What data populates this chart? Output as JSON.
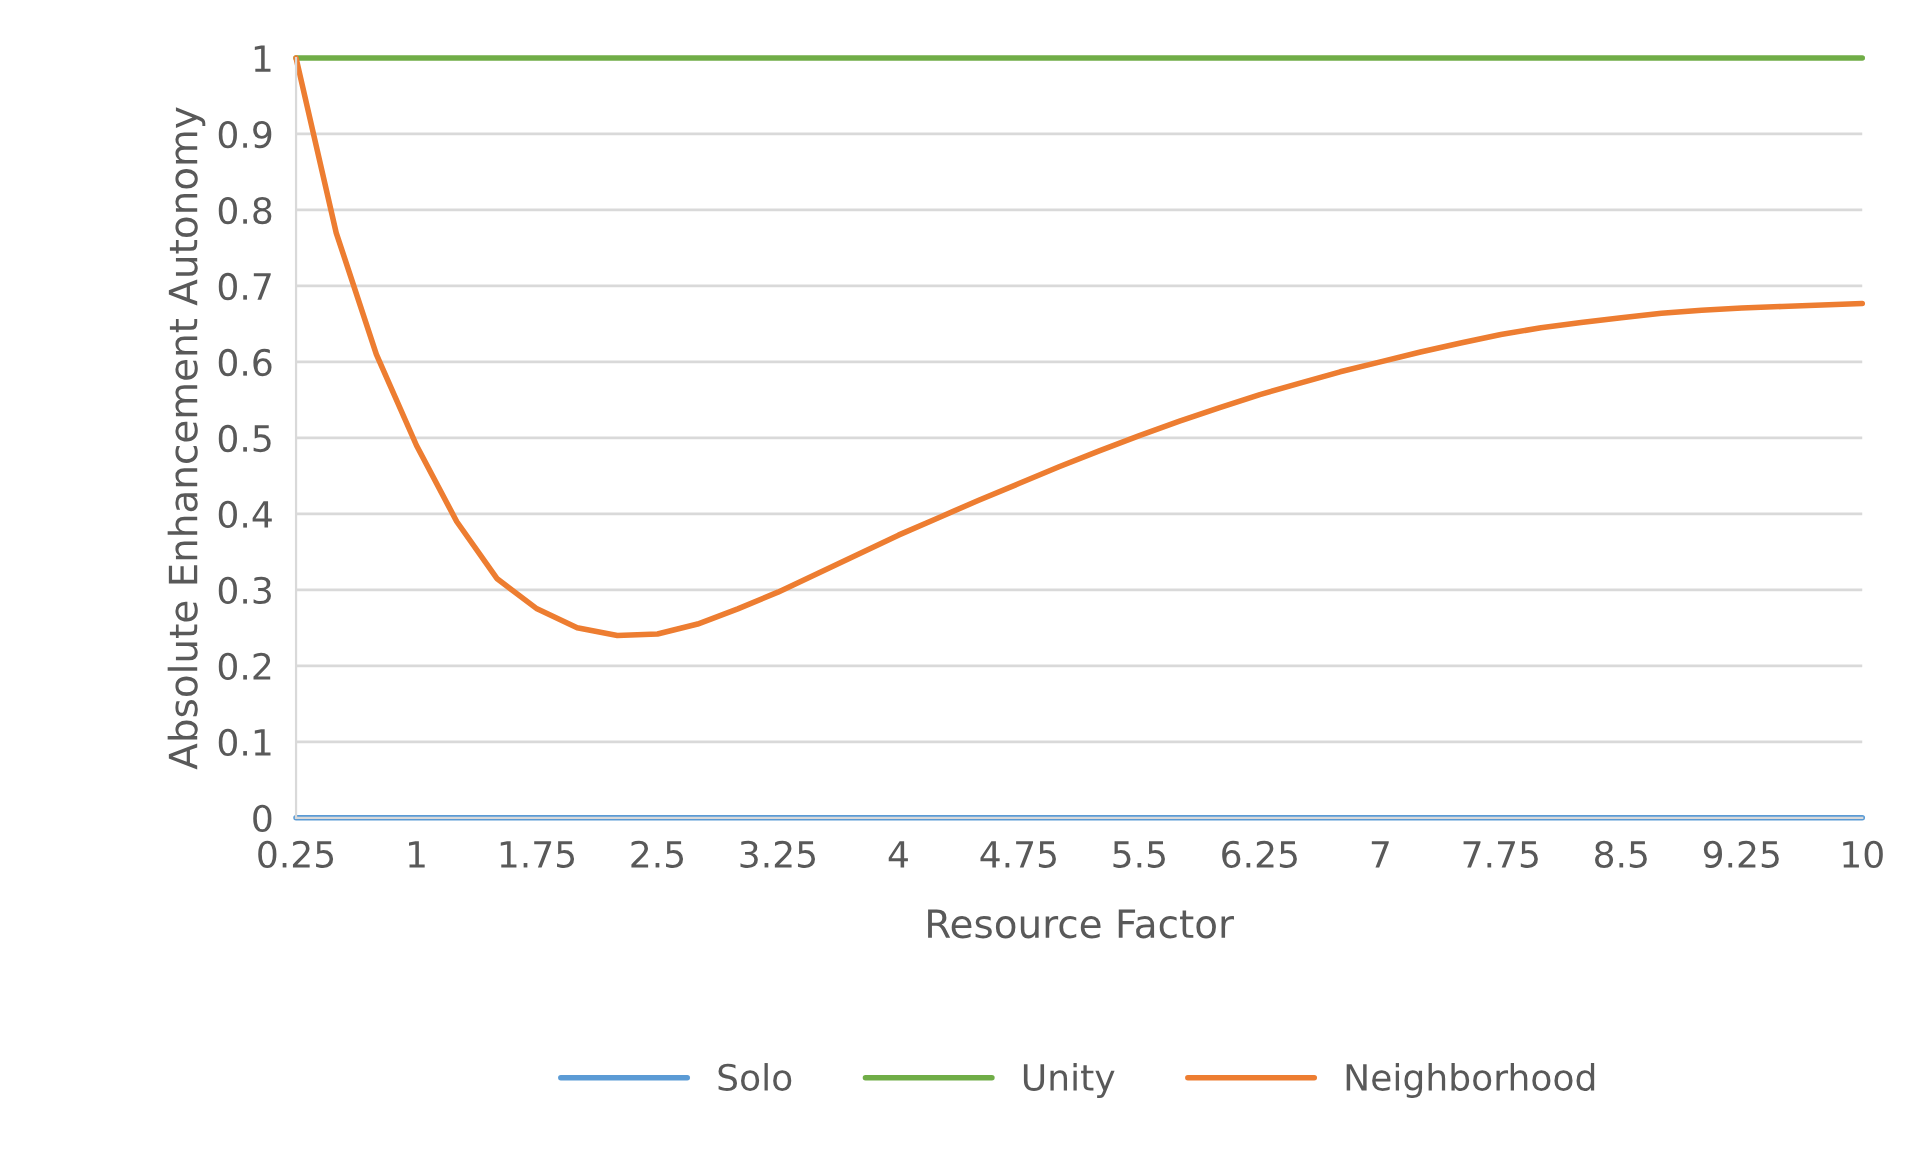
{
  "chart_data": {
    "type": "line",
    "xlabel": "Resource Factor",
    "ylabel": "Absolute Enhancement Autonomy",
    "x": [
      0.25,
      0.5,
      0.75,
      1,
      1.25,
      1.5,
      1.75,
      2,
      2.25,
      2.5,
      2.75,
      3,
      3.25,
      3.5,
      3.75,
      4,
      4.25,
      4.5,
      4.75,
      5,
      5.25,
      5.5,
      5.75,
      6,
      6.25,
      6.5,
      6.75,
      7,
      7.25,
      7.5,
      7.75,
      8,
      8.25,
      8.5,
      8.75,
      9,
      9.25,
      9.5,
      9.75,
      10
    ],
    "series": [
      {
        "name": "Solo",
        "color": "#5b9bd5",
        "values": [
          0,
          0,
          0,
          0,
          0,
          0,
          0,
          0,
          0,
          0,
          0,
          0,
          0,
          0,
          0,
          0,
          0,
          0,
          0,
          0,
          0,
          0,
          0,
          0,
          0,
          0,
          0,
          0,
          0,
          0,
          0,
          0,
          0,
          0,
          0,
          0,
          0,
          0,
          0,
          0
        ]
      },
      {
        "name": "Unity",
        "color": "#70ad47",
        "values": [
          1,
          1,
          1,
          1,
          1,
          1,
          1,
          1,
          1,
          1,
          1,
          1,
          1,
          1,
          1,
          1,
          1,
          1,
          1,
          1,
          1,
          1,
          1,
          1,
          1,
          1,
          1,
          1,
          1,
          1,
          1,
          1,
          1,
          1,
          1,
          1,
          1,
          1,
          1,
          1
        ]
      },
      {
        "name": "Neighborhood",
        "color": "#ed7d31",
        "values": [
          1.0,
          0.77,
          0.61,
          0.49,
          0.39,
          0.315,
          0.275,
          0.25,
          0.24,
          0.242,
          0.255,
          0.275,
          0.297,
          0.322,
          0.347,
          0.372,
          0.395,
          0.418,
          0.44,
          0.462,
          0.483,
          0.503,
          0.522,
          0.54,
          0.557,
          0.572,
          0.587,
          0.6,
          0.613,
          0.625,
          0.636,
          0.645,
          0.652,
          0.658,
          0.664,
          0.668,
          0.671,
          0.673,
          0.675,
          0.677
        ]
      }
    ],
    "xlim": [
      0.25,
      10
    ],
    "xticks": [
      0.25,
      1,
      1.75,
      2.5,
      3.25,
      4,
      4.75,
      5.5,
      6.25,
      7,
      7.75,
      8.5,
      9.25,
      10
    ],
    "ylim": [
      0,
      1
    ],
    "yticks": [
      0,
      0.1,
      0.2,
      0.3,
      0.4,
      0.5,
      0.6,
      0.7,
      0.8,
      0.9,
      1
    ],
    "grid": "y",
    "legend": "bottom",
    "marker": "none",
    "line_style": "solid"
  }
}
